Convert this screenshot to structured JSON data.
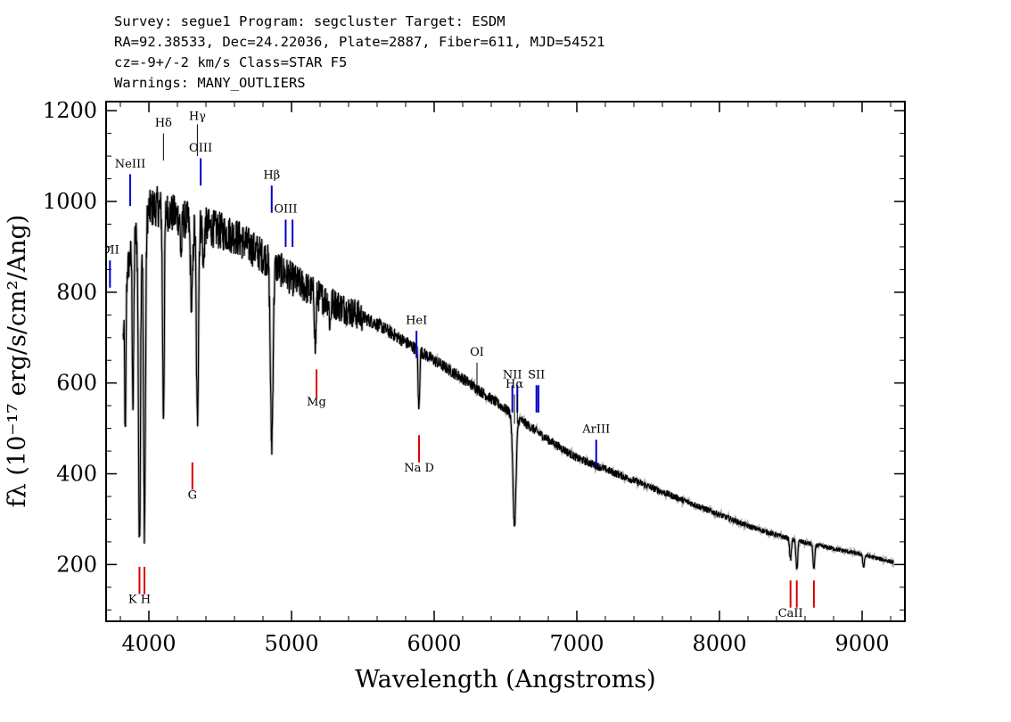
{
  "header": {
    "survey_line": "Survey: segue1 Program: segcluster Target: ESDM",
    "coords_line": "RA=92.38533, Dec=24.22036, Plate=2887, Fiber=611, MJD=54521",
    "cz_line": "cz=-9+/-2 km/s Class=STAR F5",
    "warnings_line": "Warnings: MANY_OUTLIERS"
  },
  "chart_data": {
    "type": "line",
    "xlabel": "Wavelength (Angstroms)",
    "ylabel": "fλ (10⁻¹⁷ erg/s/cm²/Ang)",
    "xlim": [
      3700,
      9300
    ],
    "ylim": [
      75,
      1220
    ],
    "x_ticks": [
      4000,
      5000,
      6000,
      7000,
      8000,
      9000
    ],
    "y_ticks": [
      200,
      400,
      600,
      800,
      1000,
      1200
    ],
    "colors": {
      "spectrum": "#000000",
      "emission": "#0000cc",
      "absorption": "#dd0000",
      "sky_line": "#000000"
    },
    "spectrum_knots": [
      [
        3820,
        700
      ],
      [
        3850,
        850
      ],
      [
        3900,
        920
      ],
      [
        3950,
        950
      ],
      [
        4000,
        980
      ],
      [
        4050,
        990
      ],
      [
        4150,
        975
      ],
      [
        4250,
        960
      ],
      [
        4400,
        945
      ],
      [
        4600,
        925
      ],
      [
        4800,
        880
      ],
      [
        5000,
        830
      ],
      [
        5200,
        790
      ],
      [
        5400,
        760
      ],
      [
        5600,
        730
      ],
      [
        5800,
        690
      ],
      [
        6000,
        650
      ],
      [
        6200,
        610
      ],
      [
        6400,
        565
      ],
      [
        6600,
        520
      ],
      [
        6800,
        475
      ],
      [
        7000,
        435
      ],
      [
        7200,
        410
      ],
      [
        7400,
        385
      ],
      [
        7600,
        360
      ],
      [
        7800,
        335
      ],
      [
        8000,
        310
      ],
      [
        8200,
        285
      ],
      [
        8400,
        265
      ],
      [
        8600,
        248
      ],
      [
        8800,
        235
      ],
      [
        9000,
        222
      ],
      [
        9220,
        205
      ]
    ],
    "absorption_features": [
      {
        "center": 3835,
        "depth": 300,
        "width": 4
      },
      {
        "center": 3889,
        "depth": 360,
        "width": 5
      },
      {
        "center": 3934,
        "depth": 700,
        "width": 7
      },
      {
        "center": 3969,
        "depth": 680,
        "width": 7
      },
      {
        "center": 4102,
        "depth": 450,
        "width": 6
      },
      {
        "center": 4226,
        "depth": 80,
        "width": 5
      },
      {
        "center": 4300,
        "depth": 180,
        "width": 8
      },
      {
        "center": 4340,
        "depth": 440,
        "width": 7
      },
      {
        "center": 4383,
        "depth": 90,
        "width": 5
      },
      {
        "center": 4861,
        "depth": 400,
        "width": 9
      },
      {
        "center": 5167,
        "depth": 120,
        "width": 5
      },
      {
        "center": 5270,
        "depth": 50,
        "width": 5
      },
      {
        "center": 5890,
        "depth": 90,
        "width": 4
      },
      {
        "center": 5896,
        "depth": 80,
        "width": 4
      },
      {
        "center": 6563,
        "depth": 240,
        "width": 11
      },
      {
        "center": 8498,
        "depth": 45,
        "width": 6
      },
      {
        "center": 8542,
        "depth": 65,
        "width": 6
      },
      {
        "center": 8662,
        "depth": 55,
        "width": 6
      },
      {
        "center": 9010,
        "depth": 25,
        "width": 6
      }
    ],
    "emission_lines": [
      {
        "label": "OII",
        "wave": 3727,
        "y1": 810,
        "y2": 870,
        "label_y": 885
      },
      {
        "label": "NeIII",
        "wave": 3869,
        "y1": 990,
        "y2": 1060,
        "label_y": 1075
      },
      {
        "label": "OIII",
        "wave": 4363,
        "y1": 1035,
        "y2": 1095,
        "label_y": 1110
      },
      {
        "label": "Hβ",
        "wave": 4861,
        "y1": 975,
        "y2": 1035,
        "label_y": 1050
      },
      {
        "label": "OIII",
        "wave": 4959,
        "y1": 900,
        "y2": 960,
        "label_y": 975
      },
      {
        "label": "",
        "wave": 5007,
        "y1": 900,
        "y2": 960,
        "label_y": 975
      },
      {
        "label": "HeI",
        "wave": 5876,
        "y1": 655,
        "y2": 715,
        "label_y": 730
      },
      {
        "label": "NII",
        "wave": 6548,
        "y1": 535,
        "y2": 595,
        "label_y": 610
      },
      {
        "label": "",
        "wave": 6583,
        "y1": 535,
        "y2": 595,
        "label_y": 610
      },
      {
        "label": "SII",
        "wave": 6717,
        "y1": 535,
        "y2": 595,
        "label_y": 610
      },
      {
        "label": "",
        "wave": 6731,
        "y1": 535,
        "y2": 595,
        "label_y": 610
      },
      {
        "label": "ArIII",
        "wave": 7136,
        "y1": 415,
        "y2": 475,
        "label_y": 490
      }
    ],
    "sky_lines": [
      {
        "label": "Hδ",
        "wave": 4102,
        "y1": 1090,
        "y2": 1150,
        "label_y": 1165
      },
      {
        "label": "Hγ",
        "wave": 4340,
        "y1": 1100,
        "y2": 1170,
        "label_y": 1180
      },
      {
        "label": "OI",
        "wave": 6300,
        "y1": 580,
        "y2": 645,
        "label_y": 660
      },
      {
        "label": "Hα",
        "wave": 6563,
        "y1": 510,
        "y2": 575,
        "label_y": 590
      },
      {
        "label": "NII",
        "wave": 6583,
        "y1": 510,
        "y2": 575,
        "label_y": 0
      }
    ],
    "absorption_lines": [
      {
        "label": "K H",
        "wave": 3934,
        "y1": 135,
        "y2": 195,
        "label_y": 115
      },
      {
        "label": "",
        "wave": 3969,
        "y1": 135,
        "y2": 195,
        "label_y": 115
      },
      {
        "label": "G",
        "wave": 4305,
        "y1": 365,
        "y2": 425,
        "label_y": 345
      },
      {
        "label": "Mg",
        "wave": 5175,
        "y1": 570,
        "y2": 630,
        "label_y": 550
      },
      {
        "label": "Na D",
        "wave": 5894,
        "y1": 425,
        "y2": 485,
        "label_y": 405
      },
      {
        "label": "CaII",
        "wave": 8498,
        "y1": 105,
        "y2": 165,
        "label_y": 85
      },
      {
        "label": "",
        "wave": 8542,
        "y1": 105,
        "y2": 165,
        "label_y": 85
      },
      {
        "label": "",
        "wave": 8662,
        "y1": 105,
        "y2": 165,
        "label_y": 85
      }
    ]
  }
}
